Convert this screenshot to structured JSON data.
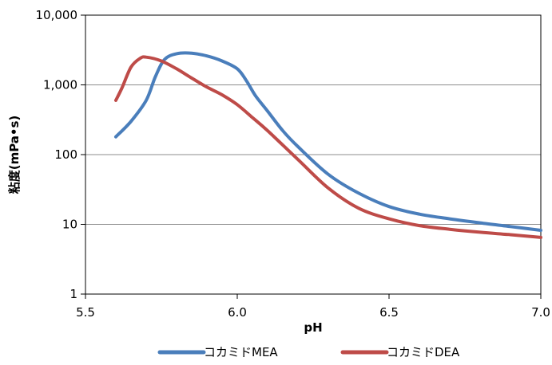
{
  "chart_data": {
    "type": "line",
    "xlabel": "pH",
    "ylabel": "粘度(mPa•s)",
    "xlim": [
      5.5,
      7.0
    ],
    "ylim": [
      1,
      10000
    ],
    "yscale": "log",
    "grid": "horizontal",
    "legend_position": "bottom",
    "x_ticks": [
      5.5,
      6.0,
      6.5,
      7.0
    ],
    "x_tick_labels": [
      "5.5",
      "6.0",
      "6.5",
      "7.0"
    ],
    "y_ticks": [
      1,
      10,
      100,
      1000,
      10000
    ],
    "y_tick_labels": [
      "1",
      "10",
      "100",
      "1,000",
      "10,000"
    ],
    "series": [
      {
        "name": "コカミドMEA",
        "color": "#4a7ebb",
        "x": [
          5.6,
          5.65,
          5.7,
          5.73,
          5.76,
          5.8,
          5.85,
          5.9,
          5.95,
          6.0,
          6.03,
          6.06,
          6.1,
          6.15,
          6.2,
          6.3,
          6.4,
          6.5,
          6.6,
          6.7,
          6.8,
          6.9,
          7.0
        ],
        "values": [
          180,
          300,
          600,
          1300,
          2300,
          2800,
          2850,
          2600,
          2200,
          1700,
          1150,
          700,
          420,
          220,
          130,
          52,
          28,
          18,
          14,
          12,
          10.5,
          9.3,
          8.2
        ]
      },
      {
        "name": "コカミドDEA",
        "color": "#be4b48",
        "x": [
          5.6,
          5.62,
          5.65,
          5.68,
          5.7,
          5.75,
          5.8,
          5.85,
          5.9,
          5.95,
          6.0,
          6.05,
          6.1,
          6.2,
          6.3,
          6.4,
          6.5,
          6.6,
          6.7,
          6.8,
          6.9,
          7.0
        ],
        "values": [
          600,
          900,
          1800,
          2400,
          2500,
          2200,
          1700,
          1250,
          930,
          720,
          520,
          340,
          220,
          85,
          33,
          17,
          12,
          9.6,
          8.5,
          7.7,
          7.1,
          6.5
        ]
      }
    ]
  }
}
